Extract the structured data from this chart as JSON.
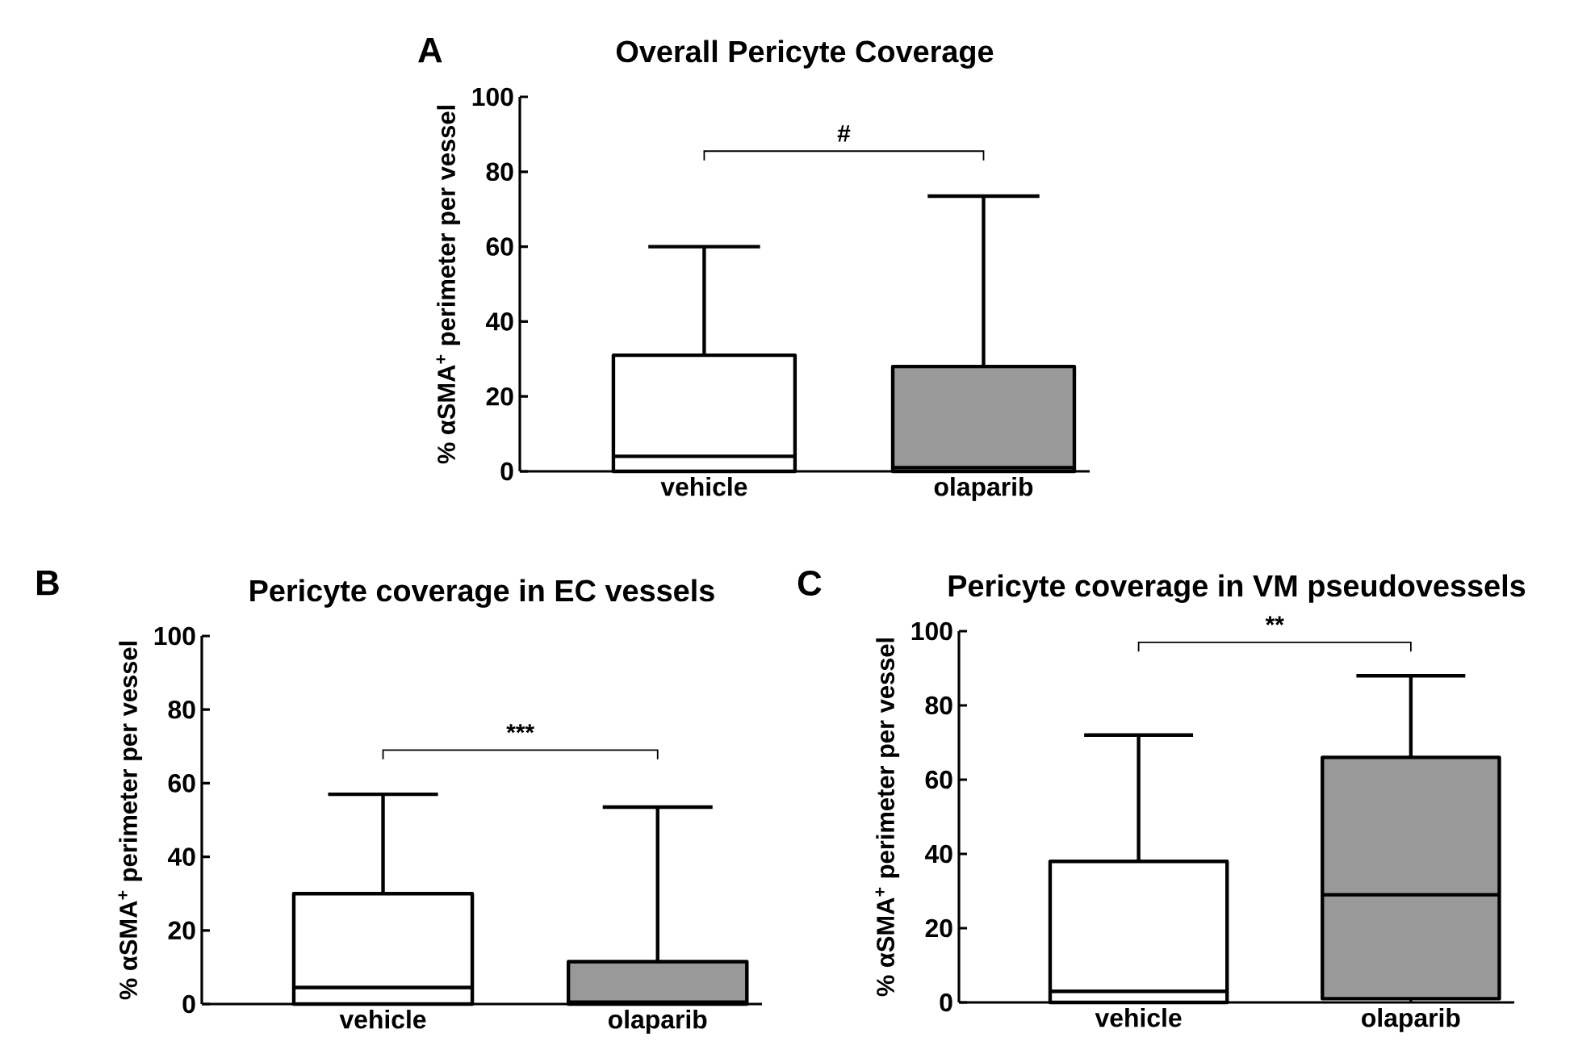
{
  "chart_data": [
    {
      "type": "box",
      "title": "Overall Pericyte Coverage",
      "ylabel": "% αSMA$^{+}$ perimeter per vessel",
      "categories": [
        "vehicle",
        "olaparib"
      ],
      "colors": [
        "#ffffff",
        "#999999"
      ],
      "boxes": [
        {
          "q1": 0,
          "median": 4,
          "q3": 31,
          "high": 60
        },
        {
          "q1": 0,
          "median": 1,
          "q3": 28,
          "high": 73.5
        }
      ],
      "ylim": [
        0,
        100
      ],
      "yticks": [
        0,
        20,
        40,
        60,
        80,
        100
      ],
      "annotations": [
        "A",
        "#"
      ]
    },
    {
      "type": "box",
      "title": "Pericyte coverage in EC vessels",
      "ylabel": "% αSMA$^{+}$ perimeter per vessel",
      "categories": [
        "vehicle",
        "olaparib"
      ],
      "colors": [
        "#ffffff",
        "#999999"
      ],
      "boxes": [
        {
          "q1": 0,
          "median": 4.5,
          "q3": 30,
          "high": 57
        },
        {
          "q1": 0,
          "median": 0.5,
          "q3": 11.5,
          "high": 53.5
        }
      ],
      "ylim": [
        0,
        100
      ],
      "yticks": [
        0,
        20,
        40,
        60,
        80,
        100
      ],
      "annotations": [
        "B",
        "***"
      ]
    },
    {
      "type": "box",
      "title": "Pericyte coverage in VM pseudovessels",
      "ylabel": "% αSMA$^{+}$ perimeter per vessel",
      "categories": [
        "vehicle",
        "olaparib"
      ],
      "colors": [
        "#ffffff",
        "#999999"
      ],
      "boxes": [
        {
          "q1": 0,
          "median": 3,
          "q3": 38,
          "high": 72
        },
        {
          "q1": 1,
          "median": 29,
          "q3": 66,
          "high": 88
        }
      ],
      "ylim": [
        0,
        100
      ],
      "yticks": [
        0,
        20,
        40,
        60,
        80,
        100
      ],
      "annotations": [
        "C",
        "**"
      ]
    }
  ]
}
